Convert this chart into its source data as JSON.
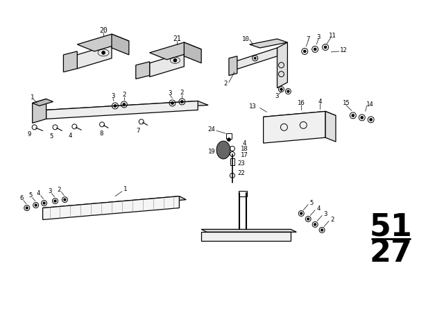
{
  "bg_color": "#ffffff",
  "fg_color": "#000000",
  "page_num_top": "51",
  "page_num_bottom": "27",
  "figsize": [
    6.4,
    4.48
  ],
  "dpi": 100
}
